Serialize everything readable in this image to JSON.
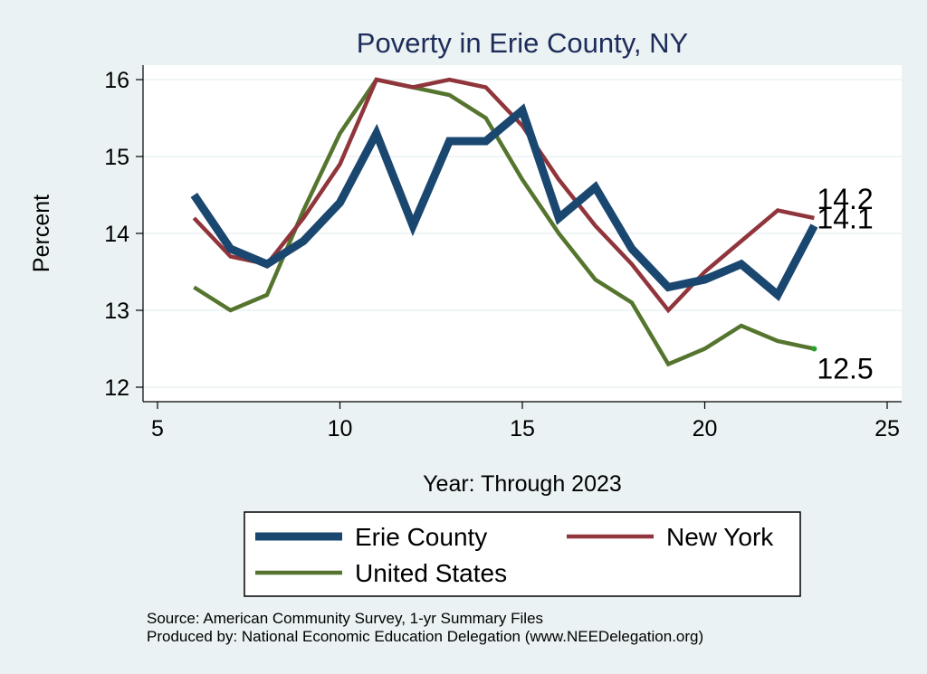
{
  "chart_data": {
    "type": "line",
    "title": "Poverty in Erie County, NY",
    "xlabel": "Year: Through 2023",
    "ylabel": "Percent",
    "xlim": [
      5,
      25
    ],
    "ylim": [
      12,
      16.1
    ],
    "xticks": [
      "5",
      "10",
      "15",
      "20",
      "25"
    ],
    "yticks": [
      "12",
      "13",
      "14",
      "15",
      "16"
    ],
    "grid": true,
    "legend_position": "bottom",
    "x": [
      6,
      7,
      8,
      9,
      10,
      11,
      12,
      13,
      14,
      15,
      16,
      17,
      18,
      19,
      20,
      21,
      22,
      23
    ],
    "series": [
      {
        "name": "Erie County",
        "color": "#1a476f",
        "values": [
          14.5,
          13.8,
          13.6,
          13.9,
          14.4,
          15.3,
          14.1,
          15.2,
          15.2,
          15.6,
          14.2,
          14.6,
          13.8,
          13.3,
          13.4,
          13.6,
          13.2,
          14.1
        ],
        "end_label": "14.1"
      },
      {
        "name": "New York",
        "color": "#90353b",
        "values": [
          14.2,
          13.7,
          13.6,
          14.2,
          14.9,
          16.0,
          15.9,
          16.0,
          15.9,
          15.4,
          14.7,
          14.1,
          13.6,
          13.0,
          13.5,
          13.9,
          14.3,
          14.2
        ],
        "end_label": "14.2"
      },
      {
        "name": "United States",
        "color": "#55752f",
        "values": [
          13.3,
          13.0,
          13.2,
          14.3,
          15.3,
          16.0,
          15.9,
          15.8,
          15.5,
          14.7,
          14.0,
          13.4,
          13.1,
          12.3,
          12.5,
          12.8,
          12.6,
          12.5
        ],
        "end_label": "12.5"
      }
    ]
  },
  "footer": {
    "source": "Source: American Community Survey, 1-yr Summary Files",
    "produced_by": "Produced by: National Economic Education Delegation (www.NEEDelegation.org)"
  }
}
